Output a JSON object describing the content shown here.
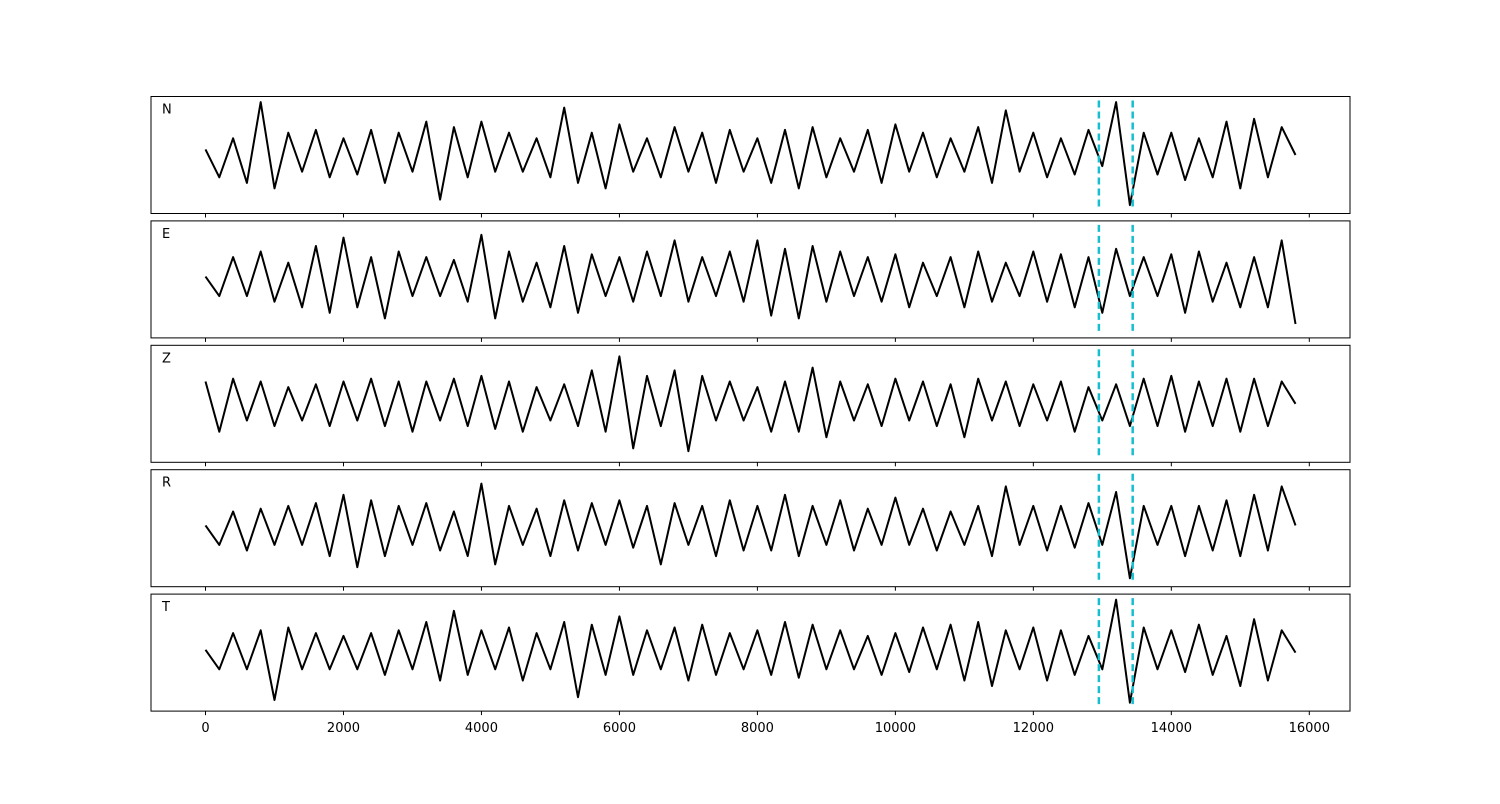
{
  "chart_data": {
    "type": "line",
    "layout": "stacked",
    "x": [
      0,
      200,
      400,
      600,
      800,
      1000,
      1200,
      1400,
      1600,
      1800,
      2000,
      2200,
      2400,
      2600,
      2800,
      3000,
      3200,
      3400,
      3600,
      3800,
      4000,
      4200,
      4400,
      4600,
      4800,
      5000,
      5200,
      5400,
      5600,
      5800,
      6000,
      6200,
      6400,
      6600,
      6800,
      7000,
      7200,
      7400,
      7600,
      7800,
      8000,
      8200,
      8400,
      8600,
      8800,
      9000,
      9200,
      9400,
      9600,
      9800,
      10000,
      10200,
      10400,
      10600,
      10800,
      11000,
      11200,
      11400,
      11600,
      11800,
      12000,
      12200,
      12400,
      12600,
      12800,
      13000,
      13200,
      13400,
      13600,
      13800,
      14000,
      14200,
      14400,
      14600,
      14800,
      15000,
      15200,
      15400,
      15600,
      15800
    ],
    "xlim": [
      -790,
      16590
    ],
    "xticks": [
      0,
      2000,
      4000,
      6000,
      8000,
      10000,
      12000,
      14000,
      16000
    ],
    "ylim": [
      -1.05,
      1.05
    ],
    "series": [
      {
        "name": "N",
        "color": "#000000",
        "values": [
          0.1,
          -0.4,
          0.3,
          -0.5,
          0.95,
          -0.6,
          0.4,
          -0.3,
          0.45,
          -0.4,
          0.3,
          -0.35,
          0.45,
          -0.5,
          0.4,
          -0.3,
          0.6,
          -0.8,
          0.5,
          -0.4,
          0.6,
          -0.3,
          0.4,
          -0.3,
          0.3,
          -0.4,
          0.85,
          -0.5,
          0.4,
          -0.6,
          0.55,
          -0.3,
          0.3,
          -0.4,
          0.5,
          -0.3,
          0.4,
          -0.5,
          0.45,
          -0.3,
          0.3,
          -0.5,
          0.45,
          -0.6,
          0.5,
          -0.4,
          0.3,
          -0.3,
          0.45,
          -0.5,
          0.55,
          -0.3,
          0.4,
          -0.4,
          0.3,
          -0.3,
          0.5,
          -0.5,
          0.8,
          -0.3,
          0.4,
          -0.4,
          0.3,
          -0.35,
          0.45,
          -0.2,
          0.95,
          -0.9,
          0.4,
          -0.35,
          0.4,
          -0.45,
          0.3,
          -0.4,
          0.6,
          -0.6,
          0.65,
          -0.4,
          0.5,
          0.0
        ]
      },
      {
        "name": "E",
        "color": "#000000",
        "values": [
          0.05,
          -0.3,
          0.4,
          -0.3,
          0.5,
          -0.4,
          0.3,
          -0.5,
          0.6,
          -0.6,
          0.75,
          -0.5,
          0.4,
          -0.7,
          0.5,
          -0.3,
          0.4,
          -0.3,
          0.35,
          -0.4,
          0.8,
          -0.7,
          0.5,
          -0.4,
          0.3,
          -0.5,
          0.6,
          -0.6,
          0.45,
          -0.3,
          0.4,
          -0.4,
          0.5,
          -0.3,
          0.7,
          -0.4,
          0.4,
          -0.3,
          0.5,
          -0.4,
          0.7,
          -0.65,
          0.55,
          -0.7,
          0.6,
          -0.4,
          0.5,
          -0.3,
          0.4,
          -0.4,
          0.45,
          -0.5,
          0.3,
          -0.3,
          0.4,
          -0.5,
          0.5,
          -0.4,
          0.3,
          -0.3,
          0.5,
          -0.4,
          0.45,
          -0.5,
          0.4,
          -0.6,
          0.55,
          -0.3,
          0.4,
          -0.3,
          0.45,
          -0.6,
          0.5,
          -0.4,
          0.3,
          -0.5,
          0.4,
          -0.5,
          0.7,
          -0.8
        ]
      },
      {
        "name": "Z",
        "color": "#000000",
        "values": [
          0.4,
          -0.5,
          0.45,
          -0.3,
          0.4,
          -0.4,
          0.3,
          -0.3,
          0.35,
          -0.4,
          0.4,
          -0.3,
          0.45,
          -0.4,
          0.4,
          -0.5,
          0.4,
          -0.3,
          0.45,
          -0.4,
          0.5,
          -0.45,
          0.4,
          -0.5,
          0.3,
          -0.3,
          0.35,
          -0.4,
          0.6,
          -0.5,
          0.85,
          -0.8,
          0.5,
          -0.4,
          0.6,
          -0.85,
          0.5,
          -0.3,
          0.4,
          -0.3,
          0.3,
          -0.5,
          0.4,
          -0.5,
          0.65,
          -0.6,
          0.4,
          -0.3,
          0.35,
          -0.4,
          0.45,
          -0.3,
          0.4,
          -0.4,
          0.35,
          -0.6,
          0.45,
          -0.3,
          0.4,
          -0.4,
          0.35,
          -0.3,
          0.4,
          -0.5,
          0.3,
          -0.3,
          0.35,
          -0.4,
          0.45,
          -0.4,
          0.5,
          -0.5,
          0.4,
          -0.4,
          0.45,
          -0.5,
          0.45,
          -0.4,
          0.4,
          0.0
        ]
      },
      {
        "name": "R",
        "color": "#000000",
        "values": [
          0.05,
          -0.3,
          0.3,
          -0.4,
          0.35,
          -0.3,
          0.4,
          -0.3,
          0.45,
          -0.5,
          0.6,
          -0.7,
          0.5,
          -0.5,
          0.4,
          -0.3,
          0.45,
          -0.4,
          0.3,
          -0.5,
          0.8,
          -0.65,
          0.4,
          -0.3,
          0.35,
          -0.5,
          0.5,
          -0.4,
          0.45,
          -0.3,
          0.5,
          -0.35,
          0.4,
          -0.65,
          0.45,
          -0.3,
          0.4,
          -0.5,
          0.5,
          -0.4,
          0.4,
          -0.4,
          0.6,
          -0.5,
          0.4,
          -0.3,
          0.5,
          -0.4,
          0.35,
          -0.3,
          0.55,
          -0.3,
          0.35,
          -0.4,
          0.3,
          -0.3,
          0.4,
          -0.5,
          0.75,
          -0.3,
          0.4,
          -0.4,
          0.4,
          -0.35,
          0.45,
          -0.3,
          0.65,
          -0.9,
          0.4,
          -0.3,
          0.4,
          -0.5,
          0.4,
          -0.4,
          0.5,
          -0.5,
          0.6,
          -0.4,
          0.75,
          0.05
        ]
      },
      {
        "name": "T",
        "color": "#000000",
        "values": [
          0.05,
          -0.3,
          0.35,
          -0.3,
          0.4,
          -0.85,
          0.45,
          -0.3,
          0.35,
          -0.3,
          0.3,
          -0.3,
          0.35,
          -0.4,
          0.4,
          -0.3,
          0.55,
          -0.5,
          0.75,
          -0.4,
          0.4,
          -0.3,
          0.45,
          -0.5,
          0.35,
          -0.3,
          0.55,
          -0.8,
          0.5,
          -0.4,
          0.65,
          -0.4,
          0.4,
          -0.3,
          0.45,
          -0.5,
          0.5,
          -0.4,
          0.35,
          -0.3,
          0.4,
          -0.4,
          0.55,
          -0.45,
          0.5,
          -0.3,
          0.4,
          -0.3,
          0.3,
          -0.4,
          0.35,
          -0.35,
          0.45,
          -0.3,
          0.5,
          -0.5,
          0.55,
          -0.6,
          0.4,
          -0.3,
          0.45,
          -0.5,
          0.4,
          -0.4,
          0.3,
          -0.3,
          0.95,
          -0.9,
          0.45,
          -0.3,
          0.4,
          -0.35,
          0.5,
          -0.4,
          0.3,
          -0.6,
          0.6,
          -0.5,
          0.4,
          0.0
        ]
      }
    ],
    "vlines": {
      "values": [
        12950,
        13440
      ],
      "color": "#17becf",
      "style": "dashed"
    }
  }
}
